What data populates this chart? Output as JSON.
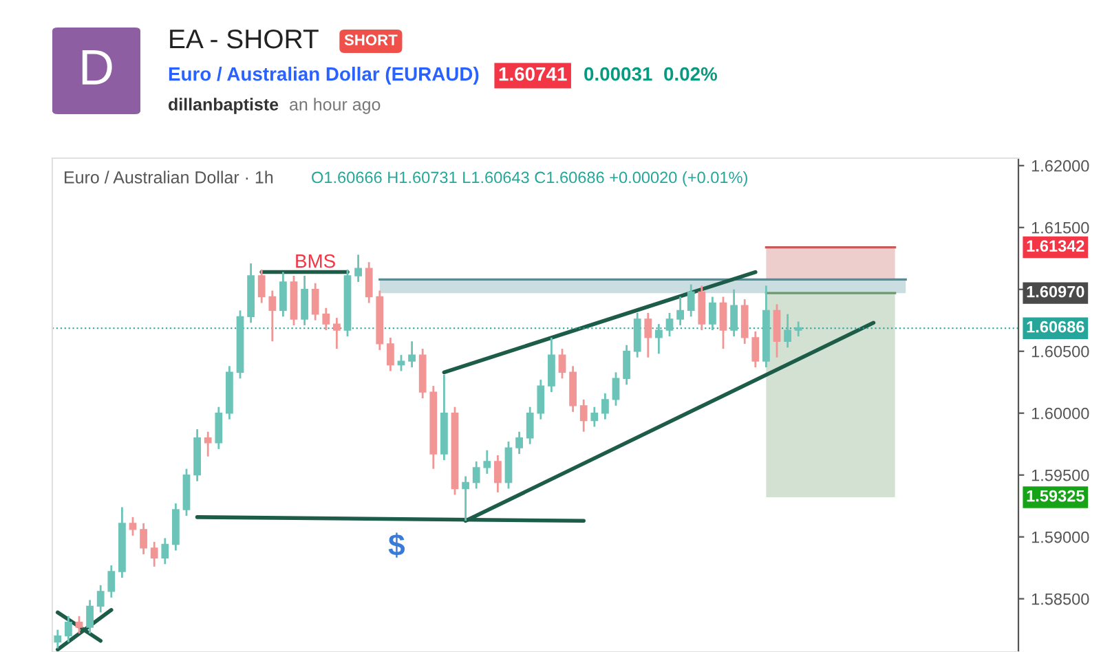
{
  "chart_data": {
    "type": "candlestick",
    "title": "EA - SHORT",
    "subtitle": "Euro / Australian Dollar (EURAUD)",
    "annotations": [
      "SHORT",
      "1.60741",
      "0.00031",
      "0.02%",
      "dillanbaptiste",
      "an hour ago",
      "D",
      "Euro / Australian Dollar · 1h",
      "O1.60666 H1.60731 L1.60643 C1.60686 +0.00020 (+0.01%)",
      "BMS",
      "$",
      "1.61342",
      "1.60970",
      "1.59325"
    ],
    "categories": [
      null,
      null,
      null,
      null,
      null,
      null,
      null,
      null,
      null,
      null,
      null,
      null,
      null,
      null,
      null,
      null,
      null,
      null,
      null,
      null,
      null,
      null,
      null,
      null,
      null,
      null,
      null,
      null,
      null,
      null,
      null,
      null,
      null,
      null,
      null,
      null,
      null,
      null,
      null,
      null,
      null,
      null,
      null,
      null,
      null,
      null,
      null,
      null,
      null,
      null,
      null,
      null,
      null,
      null,
      null,
      null,
      null,
      null,
      null,
      null,
      null,
      null,
      null,
      null,
      null,
      null,
      null,
      null,
      null,
      null,
      null,
      null,
      null,
      null,
      null,
      null,
      null,
      null,
      null,
      null,
      null,
      null,
      null,
      null,
      null,
      null,
      null,
      null,
      null,
      null
    ],
    "colors": [
      "#6cc4b8",
      "#6cc4b8",
      "#f29595",
      "#6cc4b8",
      "#6cc4b8",
      "#6cc4b8",
      "#6cc4b8",
      "#f29595",
      "#f29595",
      "#f29595",
      "#6cc4b8",
      "#6cc4b8",
      "#6cc4b8",
      "#6cc4b8",
      "#f29595",
      "#6cc4b8",
      "#6cc4b8",
      "#6cc4b8",
      "#6cc4b8",
      "#f29595",
      "#f29595",
      "#6cc4b8",
      "#f29595",
      "#6cc4b8",
      "#f29595",
      "#f29595",
      "#f29595",
      "#6cc4b8",
      "#6cc4b8",
      "#f29595",
      "#f29595",
      "#f29595",
      "#6cc4b8",
      "#6cc4b8",
      "#f29595",
      "#f29595",
      "#6cc4b8",
      "#f29595",
      "#6cc4b8",
      "#6cc4b8",
      "#6cc4b8",
      "#f29595",
      "#6cc4b8",
      "#6cc4b8",
      "#6cc4b8",
      "#6cc4b8",
      "#6cc4b8",
      "#f29595",
      "#f29595",
      "#f29595",
      "#6cc4b8",
      "#6cc4b8",
      "#6cc4b8",
      "#6cc4b8",
      "#6cc4b8",
      "#f29595",
      "#6cc4b8",
      "#6cc4b8",
      "#6cc4b8",
      "#6cc4b8",
      "#f29595",
      "#6cc4b8",
      "#f29595",
      "#6cc4b8",
      "#f29595",
      "#f29595",
      "#6cc4b8",
      "#f29595",
      "#6cc4b8",
      "#6cc4b8",
      null,
      null,
      null,
      null,
      null,
      null,
      null,
      null,
      null,
      null,
      null,
      null,
      null,
      null,
      null,
      null,
      null,
      null,
      null,
      null
    ],
    "ohlc": [
      [
        1.5815,
        1.5825,
        1.581,
        1.582
      ],
      [
        1.582,
        1.5836,
        1.5815,
        1.5831
      ],
      [
        1.5831,
        1.5836,
        1.5822,
        1.5827
      ],
      [
        1.5827,
        1.5849,
        1.5822,
        1.5844
      ],
      [
        1.5844,
        1.5861,
        1.5839,
        1.5856
      ],
      [
        1.5856,
        1.5877,
        1.5851,
        1.5872
      ],
      [
        1.5872,
        1.5924,
        1.5867,
        1.5911
      ],
      [
        1.5911,
        1.5916,
        1.5901,
        1.5906
      ],
      [
        1.5906,
        1.5911,
        1.5886,
        1.5891
      ],
      [
        1.5891,
        1.5896,
        1.5876,
        1.5883
      ],
      [
        1.5883,
        1.5899,
        1.5878,
        1.5894
      ],
      [
        1.5894,
        1.5927,
        1.5889,
        1.5922
      ],
      [
        1.5922,
        1.5955,
        1.5917,
        1.595
      ],
      [
        1.595,
        1.5987,
        1.5945,
        1.598
      ],
      [
        1.598,
        1.5985,
        1.5965,
        1.5976
      ],
      [
        1.5976,
        1.6005,
        1.5971,
        1.6
      ],
      [
        1.6,
        1.6038,
        1.5995,
        1.6033
      ],
      [
        1.6033,
        1.6083,
        1.6028,
        1.6078
      ],
      [
        1.6078,
        1.6121,
        1.6073,
        1.6111
      ],
      [
        1.6111,
        1.6116,
        1.6089,
        1.6094
      ],
      [
        1.6094,
        1.6099,
        1.6058,
        1.6083
      ],
      [
        1.6083,
        1.6114,
        1.6078,
        1.6106
      ],
      [
        1.6106,
        1.6111,
        1.6071,
        1.6076
      ],
      [
        1.6076,
        1.6111,
        1.6071,
        1.61
      ],
      [
        1.61,
        1.6105,
        1.6075,
        1.608
      ],
      [
        1.608,
        1.6085,
        1.6067,
        1.6072
      ],
      [
        1.6072,
        1.6077,
        1.6052,
        1.6067
      ],
      [
        1.6067,
        1.6116,
        1.6062,
        1.6111
      ],
      [
        1.6111,
        1.6128,
        1.6106,
        1.6117
      ],
      [
        1.6117,
        1.6122,
        1.6089,
        1.6094
      ],
      [
        1.6094,
        1.6099,
        1.6051,
        1.6056
      ],
      [
        1.6056,
        1.6061,
        1.6034,
        1.6039
      ],
      [
        1.6039,
        1.6047,
        1.6034,
        1.6042
      ],
      [
        1.6042,
        1.6058,
        1.6037,
        1.6047
      ],
      [
        1.6047,
        1.6052,
        1.6012,
        1.6017
      ],
      [
        1.6017,
        1.6022,
        1.5955,
        1.5967
      ],
      [
        1.5967,
        1.6031,
        1.5962,
        1.6
      ],
      [
        1.6,
        1.6005,
        1.5934,
        1.5939
      ],
      [
        1.5939,
        1.5949,
        1.5913,
        1.5944
      ],
      [
        1.5944,
        1.5961,
        1.5939,
        1.5956
      ],
      [
        1.5956,
        1.597,
        1.5951,
        1.5961
      ],
      [
        1.5961,
        1.5966,
        1.5936,
        1.5944
      ],
      [
        1.5944,
        1.5977,
        1.5939,
        1.5972
      ],
      [
        1.5972,
        1.5985,
        1.5967,
        1.598
      ],
      [
        1.598,
        1.6005,
        1.5975,
        1.6
      ],
      [
        1.6,
        1.6027,
        1.5995,
        1.6022
      ],
      [
        1.6022,
        1.6061,
        1.6017,
        1.6047
      ],
      [
        1.6047,
        1.6052,
        1.6028,
        1.6033
      ],
      [
        1.6033,
        1.6038,
        1.6001,
        1.6006
      ],
      [
        1.6006,
        1.6011,
        1.5985,
        1.5994
      ],
      [
        1.5994,
        1.6005,
        1.5989,
        1.6
      ],
      [
        1.6,
        1.6016,
        1.5995,
        1.6011
      ],
      [
        1.6011,
        1.6033,
        1.6006,
        1.6028
      ],
      [
        1.6028,
        1.6055,
        1.6023,
        1.605
      ],
      [
        1.605,
        1.6081,
        1.6045,
        1.6076
      ],
      [
        1.6076,
        1.6081,
        1.6045,
        1.6061
      ],
      [
        1.6061,
        1.6072,
        1.6048,
        1.6067
      ],
      [
        1.6067,
        1.6081,
        1.6062,
        1.6076
      ],
      [
        1.6076,
        1.6094,
        1.6071,
        1.6083
      ],
      [
        1.6083,
        1.6104,
        1.6078,
        1.6098
      ],
      [
        1.6098,
        1.6103,
        1.6067,
        1.6072
      ],
      [
        1.6072,
        1.6094,
        1.6067,
        1.6089
      ],
      [
        1.6089,
        1.6094,
        1.6052,
        1.6067
      ],
      [
        1.6067,
        1.61,
        1.6062,
        1.6087
      ],
      [
        1.6087,
        1.6092,
        1.6056,
        1.6061
      ],
      [
        1.6061,
        1.6066,
        1.6037,
        1.6042
      ],
      [
        1.6042,
        1.6103,
        1.6037,
        1.6083
      ],
      [
        1.6083,
        1.6088,
        1.6045,
        1.6058
      ],
      [
        1.6058,
        1.608,
        1.6053,
        1.6067
      ],
      [
        1.6067,
        1.6074,
        1.6062,
        1.6069
      ],
      null,
      null,
      null,
      null,
      null,
      null,
      null,
      null,
      null,
      null,
      null,
      null,
      null,
      null,
      null,
      null,
      null,
      null,
      null,
      null
    ],
    "series": [
      {
        "type": "line",
        "color": "#c85a5a",
        "upper": [
          null,
          null,
          null,
          null,
          null,
          null,
          null,
          null,
          null,
          null,
          null,
          null,
          null,
          null,
          null,
          null,
          null,
          null,
          null,
          null,
          null,
          null,
          null,
          null,
          null,
          null,
          null,
          null,
          null,
          null,
          null,
          null,
          null,
          null,
          null,
          null,
          null,
          null,
          null,
          null,
          null,
          null,
          null,
          null,
          null,
          null,
          null,
          null,
          null,
          null,
          null,
          null,
          null,
          null,
          null,
          null,
          null,
          null,
          null,
          null,
          null,
          null,
          null,
          null,
          null,
          null,
          1.6134,
          1.6134,
          1.6134,
          1.6134,
          1.6134,
          1.6134,
          1.6134,
          1.6134,
          1.6134,
          1.6134,
          1.6134,
          1.6134,
          1.6134,
          null,
          null,
          null,
          null,
          null,
          null,
          null,
          null,
          null,
          null,
          null
        ],
        "values": [
          null,
          null,
          null,
          null,
          null,
          null,
          null,
          null,
          null,
          null,
          null,
          null,
          null,
          null,
          null,
          null,
          null,
          null,
          null,
          null,
          null,
          null,
          null,
          null,
          null,
          null,
          null,
          null,
          null,
          null,
          null,
          null,
          null,
          null,
          null,
          null,
          null,
          null,
          null,
          null,
          null,
          null,
          null,
          null,
          null,
          null,
          null,
          null,
          null,
          null,
          null,
          null,
          null,
          null,
          null,
          null,
          null,
          null,
          null,
          null,
          null,
          null,
          null,
          null,
          null,
          null,
          1.6134,
          1.6134,
          1.6134,
          1.6134,
          1.6134,
          1.6134,
          1.6134,
          1.6134,
          1.6134,
          1.6134,
          1.6134,
          1.6134,
          1.6134,
          null,
          null,
          null,
          null,
          null,
          null,
          null,
          null,
          null,
          null,
          null
        ],
        "lower": [
          null,
          null,
          null,
          null,
          null,
          null,
          null,
          null,
          null,
          null,
          null,
          null,
          null,
          null,
          null,
          null,
          null,
          null,
          null,
          null,
          null,
          null,
          null,
          null,
          null,
          null,
          null,
          null,
          null,
          null,
          null,
          null,
          null,
          null,
          null,
          null,
          null,
          null,
          null,
          null,
          null,
          null,
          null,
          null,
          null,
          null,
          null,
          null,
          null,
          null,
          null,
          null,
          null,
          null,
          null,
          null,
          null,
          null,
          null,
          null,
          null,
          null,
          null,
          null,
          null,
          null,
          1.6097,
          1.6097,
          1.6097,
          1.6097,
          1.6097,
          1.6097,
          1.6097,
          1.6097,
          1.6097,
          1.6097,
          1.6097,
          1.6097,
          1.6097,
          null,
          null,
          null,
          null,
          null,
          null,
          null,
          null,
          null,
          null,
          null
        ]
      },
      {
        "type": "line",
        "color": "#6a9a6a",
        "upper": [
          null,
          null,
          null,
          null,
          null,
          null,
          null,
          null,
          null,
          null,
          null,
          null,
          null,
          null,
          null,
          null,
          null,
          null,
          null,
          null,
          null,
          null,
          null,
          null,
          null,
          null,
          null,
          null,
          null,
          null,
          null,
          null,
          null,
          null,
          null,
          null,
          null,
          null,
          null,
          null,
          null,
          null,
          null,
          null,
          null,
          null,
          null,
          null,
          null,
          null,
          null,
          null,
          null,
          null,
          null,
          null,
          null,
          null,
          null,
          null,
          null,
          null,
          null,
          null,
          null,
          null,
          1.6097,
          1.6097,
          1.6097,
          1.6097,
          1.6097,
          1.6097,
          1.6097,
          1.6097,
          1.6097,
          1.6097,
          1.6097,
          1.6097,
          1.6097,
          null,
          null,
          null,
          null,
          null,
          null,
          null,
          null,
          null,
          null,
          null
        ],
        "values": [
          null,
          null,
          null,
          null,
          null,
          null,
          null,
          null,
          null,
          null,
          null,
          null,
          null,
          null,
          null,
          null,
          null,
          null,
          null,
          null,
          null,
          null,
          null,
          null,
          null,
          null,
          null,
          null,
          null,
          null,
          null,
          null,
          null,
          null,
          null,
          null,
          null,
          null,
          null,
          null,
          null,
          null,
          null,
          null,
          null,
          null,
          null,
          null,
          null,
          null,
          null,
          null,
          null,
          null,
          null,
          null,
          null,
          null,
          null,
          null,
          null,
          null,
          null,
          null,
          null,
          null,
          1.6097,
          1.6097,
          1.6097,
          1.6097,
          1.6097,
          1.6097,
          1.6097,
          1.6097,
          1.6097,
          1.6097,
          1.6097,
          1.6097,
          1.6097,
          null,
          null,
          null,
          null,
          null,
          null,
          null,
          null,
          null,
          null,
          null
        ],
        "lower": [
          null,
          null,
          null,
          null,
          null,
          null,
          null,
          null,
          null,
          null,
          null,
          null,
          null,
          null,
          null,
          null,
          null,
          null,
          null,
          null,
          null,
          null,
          null,
          null,
          null,
          null,
          null,
          null,
          null,
          null,
          null,
          null,
          null,
          null,
          null,
          null,
          null,
          null,
          null,
          null,
          null,
          null,
          null,
          null,
          null,
          null,
          null,
          null,
          null,
          null,
          null,
          null,
          null,
          null,
          null,
          null,
          null,
          null,
          null,
          null,
          null,
          null,
          null,
          null,
          null,
          null,
          1.5932,
          1.5932,
          1.5932,
          1.5932,
          1.5932,
          1.5932,
          1.5932,
          1.5932,
          1.5932,
          1.5932,
          1.5932,
          1.5932,
          1.5932,
          null,
          null,
          null,
          null,
          null,
          null,
          null,
          null,
          null,
          null,
          null
        ]
      },
      {
        "type": "line",
        "color": "#4f8f9a",
        "upper": [
          null,
          null,
          null,
          null,
          null,
          null,
          null,
          null,
          null,
          null,
          null,
          null,
          null,
          null,
          null,
          null,
          null,
          null,
          null,
          null,
          null,
          null,
          null,
          null,
          null,
          null,
          null,
          null,
          null,
          null,
          1.6108,
          1.6108,
          1.6108,
          1.6108,
          1.6108,
          1.6108,
          1.6108,
          1.6108,
          1.6108,
          1.6108,
          1.6108,
          1.6108,
          1.6108,
          1.6108,
          1.6108,
          1.6108,
          1.6108,
          1.6108,
          1.6108,
          1.6108,
          1.6108,
          1.6108,
          1.6108,
          1.6108,
          1.6108,
          1.6108,
          1.6108,
          1.6108,
          1.6108,
          1.6108,
          1.6108,
          1.6108,
          1.6108,
          1.6108,
          1.6108,
          1.6108,
          1.6108,
          1.6108,
          1.6108,
          1.6108,
          1.6108,
          1.6108,
          1.6108,
          1.6108,
          1.6108,
          1.6108,
          1.6108,
          1.6108,
          1.6108,
          1.6108,
          null,
          null,
          null,
          null,
          null,
          null,
          null,
          null,
          null,
          null
        ],
        "values": [
          null,
          null,
          null,
          null,
          null,
          null,
          null,
          null,
          null,
          null,
          null,
          null,
          null,
          null,
          null,
          null,
          null,
          null,
          null,
          null,
          null,
          null,
          null,
          null,
          null,
          null,
          null,
          null,
          null,
          null,
          1.6108,
          1.6108,
          1.6108,
          1.6108,
          1.6108,
          1.6108,
          1.6108,
          1.6108,
          1.6108,
          1.6108,
          1.6108,
          1.6108,
          1.6108,
          1.6108,
          1.6108,
          1.6108,
          1.6108,
          1.6108,
          1.6108,
          1.6108,
          1.6108,
          1.6108,
          1.6108,
          1.6108,
          1.6108,
          1.6108,
          1.6108,
          1.6108,
          1.6108,
          1.6108,
          1.6108,
          1.6108,
          1.6108,
          1.6108,
          1.6108,
          1.6108,
          1.6108,
          1.6108,
          1.6108,
          1.6108,
          1.6108,
          1.6108,
          1.6108,
          1.6108,
          1.6108,
          1.6108,
          1.6108,
          1.6108,
          1.6108,
          1.6108,
          null,
          null,
          null,
          null,
          null,
          null,
          null,
          null,
          null,
          null
        ],
        "lower": [
          null,
          null,
          null,
          null,
          null,
          null,
          null,
          null,
          null,
          null,
          null,
          null,
          null,
          null,
          null,
          null,
          null,
          null,
          null,
          null,
          null,
          null,
          null,
          null,
          null,
          null,
          null,
          null,
          null,
          null,
          1.6097,
          1.6097,
          1.6097,
          1.6097,
          1.6097,
          1.6097,
          1.6097,
          1.6097,
          1.6097,
          1.6097,
          1.6097,
          1.6097,
          1.6097,
          1.6097,
          1.6097,
          1.6097,
          1.6097,
          1.6097,
          1.6097,
          1.6097,
          1.6097,
          1.6097,
          1.6097,
          1.6097,
          1.6097,
          1.6097,
          1.6097,
          1.6097,
          1.6097,
          1.6097,
          1.6097,
          1.6097,
          1.6097,
          1.6097,
          1.6097,
          1.6097,
          1.6097,
          1.6097,
          1.6097,
          1.6097,
          1.6097,
          1.6097,
          1.6097,
          1.6097,
          1.6097,
          1.6097,
          1.6097,
          1.6097,
          1.6097,
          1.6097,
          null,
          null,
          null,
          null,
          null,
          null,
          null,
          null,
          null,
          null
        ]
      },
      {
        "type": "line",
        "color": "#1e5c4a",
        "values": [
          null,
          null,
          null,
          null,
          null,
          null,
          null,
          null,
          null,
          null,
          null,
          null,
          null,
          null,
          null,
          null,
          null,
          null,
          null,
          1.6114,
          null,
          null,
          null,
          null,
          null,
          null,
          null,
          1.6114,
          null,
          null,
          null,
          null,
          null,
          null,
          null,
          null,
          null,
          null,
          null,
          null,
          null,
          null,
          null,
          null,
          null,
          null,
          null,
          null,
          null,
          null,
          null,
          null,
          null,
          null,
          null,
          null,
          null,
          null,
          null,
          null,
          null,
          null,
          null,
          null,
          null,
          null,
          null,
          null,
          null,
          null,
          null,
          null,
          null,
          null,
          null,
          null,
          null,
          null,
          null,
          null,
          null,
          null,
          null,
          null,
          null,
          null,
          null,
          null,
          null,
          null
        ]
      },
      {
        "type": "line",
        "color": "#1e5c4a",
        "values": [
          null,
          null,
          null,
          null,
          null,
          null,
          null,
          null,
          null,
          null,
          null,
          null,
          null,
          1.5916,
          null,
          null,
          null,
          null,
          null,
          null,
          null,
          null,
          null,
          null,
          null,
          null,
          null,
          null,
          null,
          null,
          null,
          null,
          null,
          null,
          null,
          null,
          null,
          null,
          null,
          null,
          null,
          null,
          null,
          null,
          null,
          null,
          null,
          null,
          null,
          1.5913,
          null,
          null,
          null,
          null,
          null,
          null,
          null,
          null,
          null,
          null,
          null,
          null,
          null,
          null,
          null,
          null,
          null,
          null,
          null,
          null,
          null,
          null,
          null,
          null,
          null,
          null,
          null,
          null,
          null,
          null,
          null,
          null,
          null,
          null,
          null,
          null,
          null,
          null,
          null,
          null
        ]
      },
      {
        "type": "line",
        "color": "#1e5c4a",
        "values": [
          null,
          null,
          null,
          null,
          null,
          null,
          null,
          null,
          null,
          null,
          null,
          null,
          null,
          null,
          null,
          null,
          null,
          null,
          null,
          null,
          null,
          null,
          null,
          null,
          null,
          null,
          null,
          null,
          null,
          null,
          null,
          null,
          null,
          null,
          null,
          null,
          1.6033,
          null,
          null,
          null,
          null,
          null,
          null,
          null,
          null,
          null,
          null,
          null,
          null,
          null,
          null,
          null,
          null,
          null,
          null,
          null,
          null,
          null,
          null,
          null,
          null,
          null,
          null,
          null,
          null,
          1.6114,
          null,
          null,
          null,
          null,
          null,
          null,
          null,
          null,
          null,
          null,
          null,
          null,
          null,
          null,
          null,
          null,
          null,
          null,
          null,
          null,
          null,
          null,
          null,
          null
        ]
      },
      {
        "type": "line",
        "color": "#1e5c4a",
        "values": [
          null,
          null,
          null,
          null,
          null,
          null,
          null,
          null,
          null,
          null,
          null,
          null,
          null,
          null,
          null,
          null,
          null,
          null,
          null,
          null,
          null,
          null,
          null,
          null,
          null,
          null,
          null,
          null,
          null,
          null,
          null,
          null,
          null,
          null,
          null,
          null,
          null,
          null,
          1.5913,
          null,
          null,
          null,
          null,
          null,
          null,
          null,
          null,
          null,
          null,
          null,
          null,
          null,
          null,
          null,
          null,
          null,
          null,
          null,
          null,
          null,
          null,
          null,
          null,
          null,
          null,
          null,
          null,
          null,
          null,
          null,
          null,
          null,
          null,
          null,
          null,
          null,
          1.6073,
          null,
          null,
          null,
          null,
          null,
          null,
          null,
          null,
          null,
          null,
          null,
          null,
          null
        ]
      },
      {
        "type": "line",
        "color": "#1e5c4a",
        "values": [
          1.5809,
          null,
          null,
          null,
          null,
          1.5841,
          null,
          null,
          null,
          null,
          null,
          null,
          null,
          null,
          null,
          null,
          null,
          null,
          null,
          null,
          null,
          null,
          null,
          null,
          null,
          null,
          null,
          null,
          null,
          null,
          null,
          null,
          null,
          null,
          null,
          null,
          null,
          null,
          null,
          null,
          null,
          null,
          null,
          null,
          null,
          null,
          null,
          null,
          null,
          null,
          null,
          null,
          null,
          null,
          null,
          null,
          null,
          null,
          null,
          null,
          null,
          null,
          null,
          null,
          null,
          null,
          null,
          null,
          null,
          null,
          null,
          null,
          null,
          null,
          null,
          null,
          null,
          null,
          null,
          null,
          null,
          null,
          null,
          null,
          null,
          null,
          null,
          null,
          null,
          null
        ]
      },
      {
        "type": "line",
        "color": "#1e5c4a",
        "values": [
          1.5839,
          null,
          null,
          null,
          1.5816,
          null,
          null,
          null,
          null,
          null,
          null,
          null,
          null,
          null,
          null,
          null,
          null,
          null,
          null,
          null,
          null,
          null,
          null,
          null,
          null,
          null,
          null,
          null,
          null,
          null,
          null,
          null,
          null,
          null,
          null,
          null,
          null,
          null,
          null,
          null,
          null,
          null,
          null,
          null,
          null,
          null,
          null,
          null,
          null,
          null,
          null,
          null,
          null,
          null,
          null,
          null,
          null,
          null,
          null,
          null,
          null,
          null,
          null,
          null,
          null,
          null,
          null,
          null,
          null,
          null,
          null,
          null,
          null,
          null,
          null,
          null,
          null,
          null,
          null,
          null,
          null,
          null,
          null,
          null,
          null,
          null,
          null,
          null,
          null,
          null
        ]
      }
    ],
    "ref_lines": [
      {
        "axis": "y",
        "value": 1.60686,
        "label": "1.60686",
        "color": "#26a69a",
        "line_style": "dotted"
      }
    ],
    "ylim": [
      1.5807,
      1.6206
    ],
    "yticks": [
      {
        "value": 1.585,
        "label": "1.58500"
      },
      {
        "value": 1.59,
        "label": "1.59000"
      },
      {
        "value": 1.595,
        "label": "1.59500"
      },
      {
        "value": 1.6,
        "label": "1.60000"
      },
      {
        "value": 1.605,
        "label": "1.60500"
      },
      {
        "value": 1.61,
        "label": null
      },
      {
        "value": 1.615,
        "label": "1.61500"
      },
      {
        "value": 1.62,
        "label": "1.62000"
      }
    ],
    "tick_labels": "y"
  }
}
